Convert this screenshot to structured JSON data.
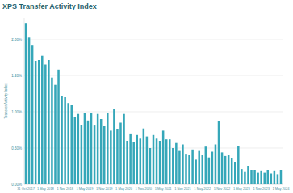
{
  "chart_data": {
    "type": "bar",
    "title": "XPS Transfer Activity Index",
    "y_label": "Transfer Activity Index",
    "categories": [
      "31 Oct 2017",
      null,
      null,
      null,
      null,
      null,
      "1 May 2018",
      null,
      null,
      null,
      null,
      null,
      "1 Nov 2018",
      null,
      null,
      null,
      null,
      null,
      "1 May 2019",
      null,
      null,
      null,
      null,
      null,
      "1 Nov 2019",
      null,
      null,
      null,
      null,
      null,
      "1 May 2020",
      null,
      null,
      null,
      null,
      null,
      "1 Nov 2020",
      null,
      null,
      null,
      null,
      null,
      "1 May 2021",
      null,
      null,
      null,
      null,
      null,
      "1 Nov 2021",
      null,
      null,
      null,
      null,
      null,
      "1 May 2022",
      null,
      null,
      null,
      null,
      null,
      "1 Nov 2022",
      null,
      null,
      null,
      null,
      null,
      "1 May 2023",
      null,
      null,
      null,
      null,
      null,
      "1 Nov 2023",
      null,
      null,
      null,
      null,
      null,
      "1 May 2024"
    ],
    "values": [
      2.22,
      2.03,
      1.92,
      1.7,
      1.72,
      1.77,
      1.65,
      1.72,
      1.47,
      1.37,
      1.58,
      1.22,
      1.2,
      1.12,
      1.1,
      0.93,
      0.97,
      0.82,
      0.98,
      0.88,
      0.98,
      0.81,
      0.97,
      0.9,
      0.8,
      0.98,
      0.74,
      1.04,
      0.76,
      0.85,
      0.97,
      0.6,
      0.69,
      0.58,
      0.68,
      0.63,
      0.77,
      0.66,
      0.5,
      0.68,
      0.63,
      0.6,
      0.74,
      0.62,
      0.62,
      0.5,
      0.57,
      0.46,
      0.55,
      0.41,
      0.4,
      0.48,
      0.34,
      0.46,
      0.4,
      0.52,
      0.37,
      0.45,
      0.55,
      0.87,
      0.44,
      0.39,
      0.4,
      0.36,
      0.3,
      0.53,
      0.21,
      0.17,
      0.25,
      0.2,
      0.2,
      0.16,
      0.18,
      0.16,
      0.19,
      0.15,
      0.18,
      0.14,
      0.19
    ],
    "color": "#35a7b9",
    "ylim": [
      0,
      2.3
    ],
    "yticks": [
      {
        "value": 0,
        "label": "0.00%"
      },
      {
        "value": 0.5,
        "label": "0.50%"
      },
      {
        "value": 1,
        "label": "1.00%"
      },
      {
        "value": 1.5,
        "label": "1.50%"
      },
      {
        "value": 2,
        "label": "2.00%"
      }
    ],
    "grid": true
  }
}
